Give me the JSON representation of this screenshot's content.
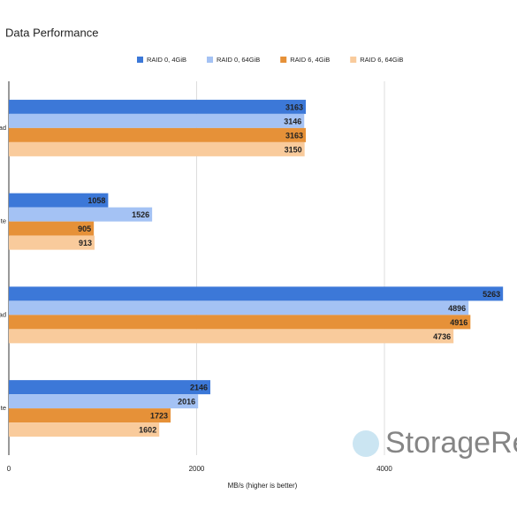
{
  "chart_data": {
    "type": "hbar",
    "title": "Data Performance",
    "categories": [
      "ad",
      "te",
      "ad",
      "te"
    ],
    "series": [
      {
        "name": "RAID 0, 4GiB",
        "color": "#3c78d8",
        "values": [
          3163,
          1058,
          5263,
          2146
        ]
      },
      {
        "name": "RAID 0, 64GiB",
        "color": "#a4c2f4",
        "values": [
          3146,
          1526,
          4896,
          2016
        ]
      },
      {
        "name": "RAID 6, 4GiB",
        "color": "#e69138",
        "values": [
          3163,
          905,
          4916,
          1723
        ]
      },
      {
        "name": "RAID 6, 64GiB",
        "color": "#f9cb9c",
        "values": [
          3150,
          913,
          4736,
          1602
        ]
      }
    ],
    "xlim": [
      0,
      5412
    ],
    "xticks": [
      0,
      2000,
      4000
    ],
    "grid": true,
    "xlabel": "MB/s (higher is better)",
    "watermark": "StorageRev"
  }
}
